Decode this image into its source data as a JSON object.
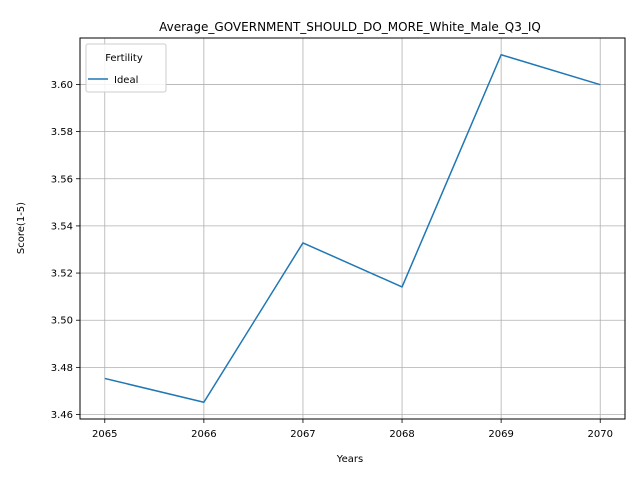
{
  "chart_data": {
    "type": "line",
    "title": "Average_GOVERNMENT_SHOULD_DO_MORE_White_Male_Q3_IQ",
    "xlabel": "Years",
    "ylabel": "Score(1-5)",
    "x": [
      2065,
      2066,
      2067,
      2068,
      2069,
      2070
    ],
    "x_tick_labels": [
      "2065",
      "2066",
      "2067",
      "2068",
      "2069",
      "2070"
    ],
    "y_ticks": [
      3.46,
      3.48,
      3.5,
      3.52,
      3.54,
      3.56,
      3.58,
      3.6
    ],
    "y_tick_labels": [
      "3.46",
      "3.48",
      "3.50",
      "3.52",
      "3.54",
      "3.56",
      "3.58",
      "3.60"
    ],
    "xlim": [
      2064.75,
      2070.25
    ],
    "ylim": [
      3.4581,
      3.6197
    ],
    "grid": true,
    "legend": {
      "title": "Fertility",
      "position": "top-left"
    },
    "series": [
      {
        "name": "Ideal",
        "color": "#1f77b4",
        "values": [
          3.4753,
          3.4652,
          3.5328,
          3.5141,
          3.6126,
          3.5999
        ]
      }
    ]
  }
}
